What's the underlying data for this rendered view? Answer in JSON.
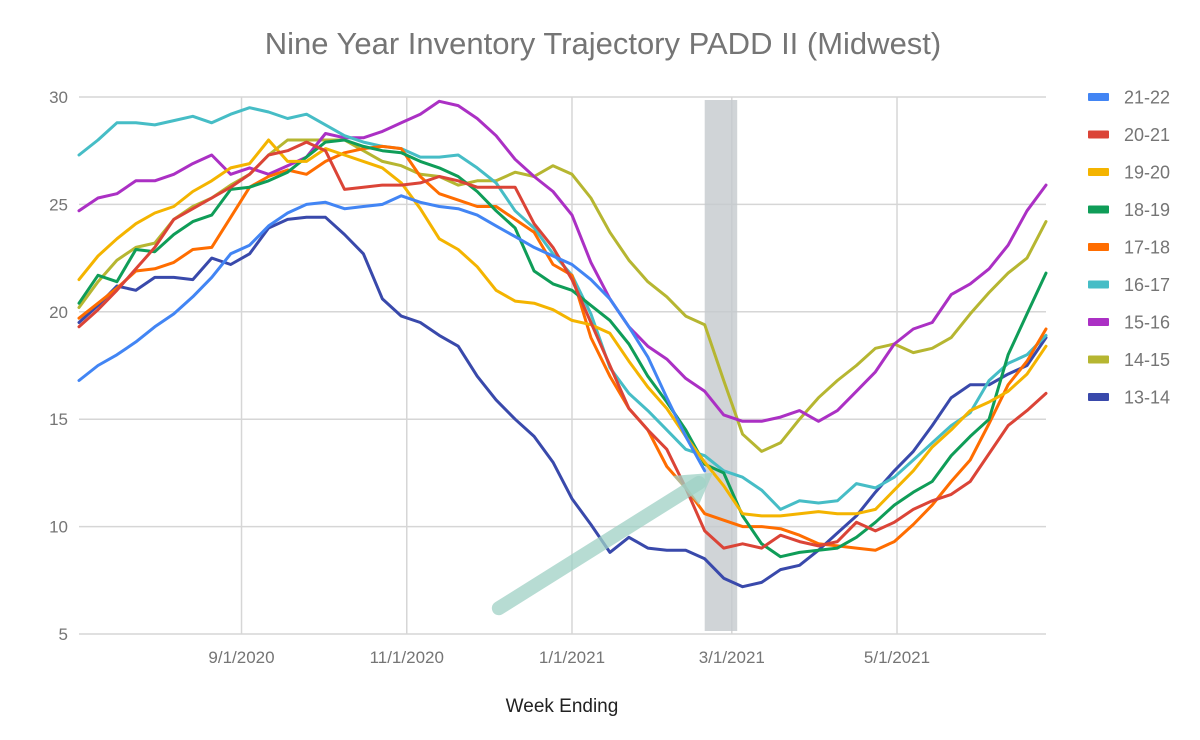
{
  "chart_data": {
    "type": "line",
    "title": "Nine Year Inventory Trajectory PADD II (Midwest)",
    "xlabel": "Week Ending",
    "ylabel": "",
    "ylim": [
      5,
      30
    ],
    "yticks": [
      5,
      10,
      15,
      20,
      25,
      30
    ],
    "x_start": "7/3/2020",
    "x_step_days": 7,
    "x_count": 52,
    "xlim": [
      "7/3/2020",
      "6/25/2021"
    ],
    "xticks": [
      "9/1/2020",
      "11/1/2020",
      "1/1/2021",
      "3/1/2021",
      "5/1/2021"
    ],
    "grid": true,
    "legend_position": "right",
    "annotations": [
      {
        "type": "shaded-band",
        "from": "2/19/2021",
        "to": "3/3/2021",
        "color": "#c4c9cd"
      },
      {
        "type": "arrow",
        "from": [
          "12/5/2020",
          6.2
        ],
        "to": [
          "2/22/2021",
          12.5
        ],
        "color": "#9fd1c5"
      }
    ],
    "series": [
      {
        "name": "21-22",
        "color": "#4285f4",
        "values": [
          16.8,
          17.5,
          18.0,
          18.6,
          19.3,
          19.9,
          20.7,
          21.6,
          22.7,
          23.1,
          24.0,
          24.6,
          25.0,
          25.1,
          24.8,
          24.9,
          25.0,
          25.4,
          25.1,
          24.9,
          24.8,
          24.5,
          24.0,
          23.5,
          23.0,
          22.6,
          22.2,
          21.5,
          20.6,
          19.3,
          17.9,
          16.0,
          14.2,
          12.6
        ]
      },
      {
        "name": "20-21",
        "color": "#db4437",
        "values": [
          19.3,
          20.1,
          21.0,
          22.0,
          23.0,
          24.3,
          24.8,
          25.3,
          25.8,
          26.4,
          27.3,
          27.5,
          27.9,
          27.5,
          25.7,
          25.8,
          25.9,
          25.9,
          26.0,
          26.3,
          26.1,
          25.8,
          25.8,
          25.8,
          24.1,
          23.0,
          21.5,
          19.5,
          17.5,
          15.5,
          14.5,
          13.6,
          11.8,
          9.8,
          9.0,
          9.2,
          9.0,
          9.6,
          9.3,
          9.1,
          9.3,
          10.2,
          9.8,
          10.2,
          10.8,
          11.2,
          11.5,
          12.1,
          13.4,
          14.7,
          15.4,
          16.2
        ]
      },
      {
        "name": "19-20",
        "color": "#f4b400",
        "values": [
          21.5,
          22.6,
          23.4,
          24.1,
          24.6,
          24.9,
          25.6,
          26.1,
          26.7,
          26.9,
          28.0,
          27.0,
          27.0,
          27.6,
          27.3,
          27.0,
          26.7,
          26.0,
          24.8,
          23.4,
          22.9,
          22.1,
          21.0,
          20.5,
          20.4,
          20.1,
          19.6,
          19.4,
          19.0,
          17.7,
          16.5,
          15.5,
          14.2,
          13.0,
          11.9,
          10.6,
          10.5,
          10.5,
          10.6,
          10.7,
          10.6,
          10.6,
          10.8,
          11.7,
          12.6,
          13.7,
          14.5,
          15.4,
          15.8,
          16.3,
          17.1,
          18.4
        ]
      },
      {
        "name": "18-19",
        "color": "#0f9d58",
        "values": [
          20.4,
          21.7,
          21.4,
          22.9,
          22.8,
          23.6,
          24.2,
          24.5,
          25.7,
          25.8,
          26.1,
          26.5,
          27.2,
          27.9,
          28.0,
          27.7,
          27.5,
          27.4,
          27.0,
          26.7,
          26.3,
          25.6,
          24.7,
          23.9,
          21.9,
          21.3,
          21.0,
          20.3,
          19.6,
          18.5,
          17.0,
          15.8,
          14.5,
          12.9,
          12.5,
          10.5,
          9.2,
          8.6,
          8.8,
          8.9,
          9.0,
          9.5,
          10.2,
          11.0,
          11.6,
          12.1,
          13.3,
          14.2,
          15.0,
          18.0,
          19.9,
          21.8
        ]
      },
      {
        "name": "17-18",
        "color": "#ff6d00",
        "values": [
          19.7,
          20.4,
          21.1,
          21.9,
          22.0,
          22.3,
          22.9,
          23.0,
          24.4,
          25.8,
          26.3,
          26.6,
          26.4,
          27.0,
          27.4,
          27.6,
          27.7,
          27.6,
          26.3,
          25.5,
          25.2,
          24.9,
          24.9,
          24.3,
          23.7,
          22.2,
          21.7,
          18.8,
          17.0,
          15.5,
          14.5,
          12.8,
          11.8,
          10.6,
          10.3,
          10.0,
          10.0,
          9.9,
          9.6,
          9.2,
          9.1,
          9.0,
          8.9,
          9.3,
          10.1,
          11.0,
          12.1,
          13.1,
          14.8,
          16.6,
          17.7,
          19.2
        ]
      },
      {
        "name": "16-17",
        "color": "#46bdc6",
        "values": [
          27.3,
          28.0,
          28.8,
          28.8,
          28.7,
          28.9,
          29.1,
          28.8,
          29.2,
          29.5,
          29.3,
          29.0,
          29.2,
          28.7,
          28.2,
          27.9,
          27.7,
          27.6,
          27.2,
          27.2,
          27.3,
          26.7,
          26.0,
          24.7,
          23.9,
          22.7,
          21.7,
          19.9,
          17.4,
          16.2,
          15.4,
          14.5,
          13.6,
          13.3,
          12.6,
          12.3,
          11.7,
          10.8,
          11.2,
          11.1,
          11.2,
          12.0,
          11.8,
          12.3,
          13.1,
          13.9,
          14.7,
          15.3,
          16.8,
          17.6,
          18.0,
          18.9
        ]
      },
      {
        "name": "15-16",
        "color": "#ab30c4",
        "values": [
          24.7,
          25.3,
          25.5,
          26.1,
          26.1,
          26.4,
          26.9,
          27.3,
          26.4,
          26.7,
          26.4,
          26.8,
          27.2,
          28.3,
          28.1,
          28.1,
          28.4,
          28.8,
          29.2,
          29.8,
          29.6,
          29.0,
          28.2,
          27.1,
          26.3,
          25.6,
          24.5,
          22.3,
          20.6,
          19.3,
          18.4,
          17.8,
          16.9,
          16.3,
          15.2,
          14.9,
          14.9,
          15.1,
          15.4,
          14.9,
          15.4,
          16.3,
          17.2,
          18.5,
          19.2,
          19.5,
          20.8,
          21.3,
          22.0,
          23.1,
          24.7,
          25.9
        ]
      },
      {
        "name": "14-15",
        "color": "#b6b631",
        "values": [
          20.2,
          21.4,
          22.4,
          23.0,
          23.2,
          24.3,
          24.9,
          25.3,
          25.9,
          26.4,
          27.3,
          28.0,
          28.0,
          28.0,
          28.0,
          27.5,
          27.0,
          26.8,
          26.4,
          26.3,
          25.9,
          26.1,
          26.1,
          26.5,
          26.3,
          26.8,
          26.4,
          25.3,
          23.7,
          22.4,
          21.4,
          20.7,
          19.8,
          19.4,
          16.8,
          14.3,
          13.5,
          13.9,
          15.0,
          16.0,
          16.8,
          17.5,
          18.3,
          18.5,
          18.1,
          18.3,
          18.8,
          19.9,
          20.9,
          21.8,
          22.5,
          24.2
        ]
      },
      {
        "name": "13-14",
        "color": "#3949ab",
        "values": [
          19.5,
          20.3,
          21.2,
          21.0,
          21.6,
          21.6,
          21.5,
          22.5,
          22.2,
          22.7,
          23.9,
          24.3,
          24.4,
          24.4,
          23.6,
          22.7,
          20.6,
          19.8,
          19.5,
          18.9,
          18.4,
          17.0,
          15.9,
          15.0,
          14.2,
          13.0,
          11.3,
          10.1,
          8.8,
          9.5,
          9.0,
          8.9,
          8.9,
          8.5,
          7.6,
          7.2,
          7.4,
          8.0,
          8.2,
          8.9,
          9.7,
          10.5,
          11.6,
          12.6,
          13.5,
          14.7,
          16.0,
          16.6,
          16.6,
          17.1,
          17.5,
          18.8
        ]
      }
    ]
  }
}
